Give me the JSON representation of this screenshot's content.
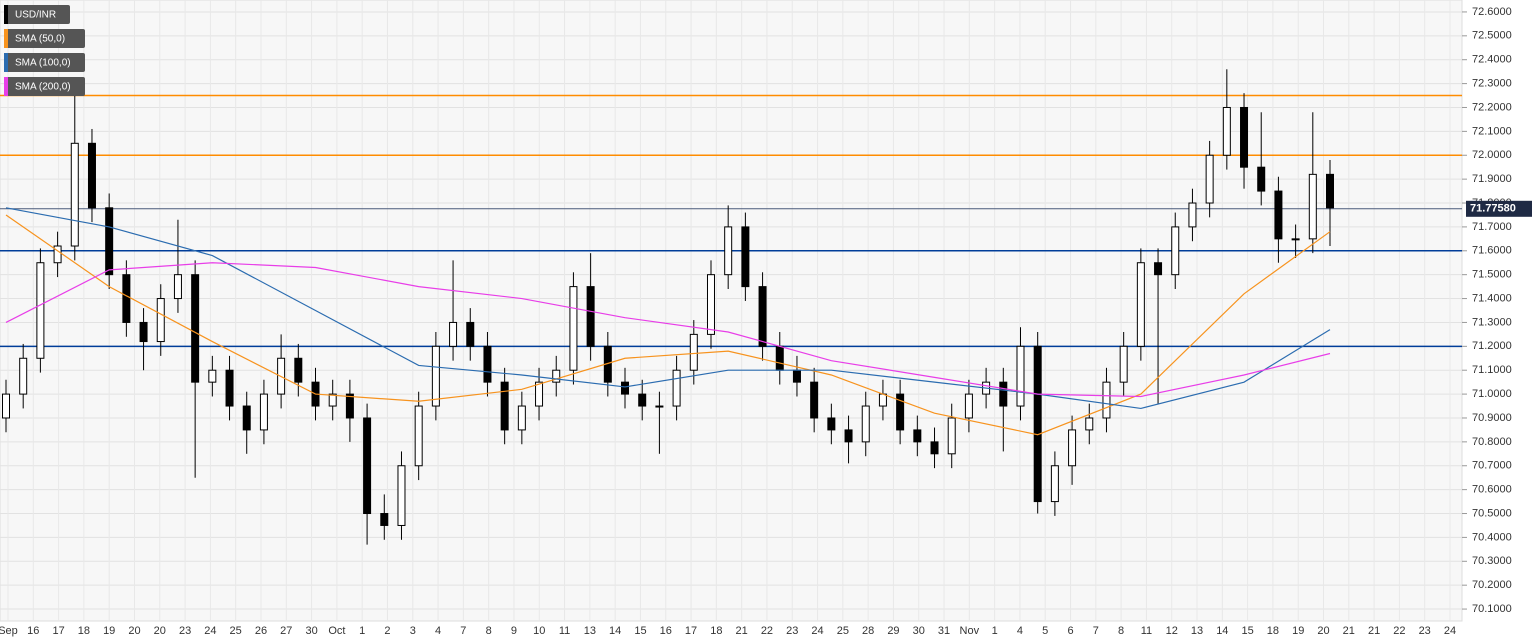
{
  "chart_data": {
    "type": "candlestick",
    "series": [
      {
        "name": "USD/INR",
        "color": "#000000",
        "open": [
          70.9,
          71.0,
          71.15,
          71.55,
          71.62,
          72.05,
          71.78,
          71.5,
          71.3,
          71.22,
          71.4,
          71.5,
          71.05,
          71.1,
          70.95,
          70.85,
          71.0,
          71.15,
          71.05,
          70.95,
          71.0,
          70.9,
          70.5,
          70.45,
          70.7,
          70.95,
          71.2,
          71.3,
          71.2,
          71.05,
          70.85,
          70.95,
          71.05,
          71.1,
          71.45,
          71.2,
          71.05,
          71.0,
          70.95,
          70.95,
          71.1,
          71.25,
          71.5,
          71.7,
          71.45,
          71.2,
          71.1,
          71.05,
          70.9,
          70.85,
          70.8,
          70.95,
          71.0,
          70.85,
          70.8,
          70.75,
          70.9,
          71.0,
          71.05,
          70.95,
          71.2,
          70.55,
          70.7,
          70.85,
          70.9,
          71.05,
          71.2,
          71.55,
          71.5,
          71.7,
          71.8,
          72.0,
          72.2,
          71.95,
          71.85,
          71.65,
          71.65,
          71.92
        ],
        "high": [
          71.06,
          71.21,
          71.61,
          71.68,
          72.3,
          72.11,
          71.84,
          71.56,
          71.36,
          71.46,
          71.73,
          71.56,
          71.16,
          71.16,
          71.01,
          71.06,
          71.25,
          71.21,
          71.11,
          71.06,
          71.06,
          70.96,
          70.58,
          70.76,
          71.01,
          71.26,
          71.56,
          71.36,
          71.26,
          71.11,
          71.01,
          71.11,
          71.16,
          71.51,
          71.59,
          71.26,
          71.11,
          71.06,
          71.01,
          71.16,
          71.31,
          71.56,
          71.79,
          71.76,
          71.51,
          71.26,
          71.16,
          71.11,
          70.96,
          70.91,
          71.01,
          71.06,
          71.06,
          70.91,
          70.86,
          70.96,
          71.06,
          71.11,
          71.11,
          71.28,
          71.26,
          70.76,
          70.91,
          70.96,
          71.11,
          71.26,
          71.61,
          71.61,
          71.76,
          71.86,
          72.06,
          72.36,
          72.26,
          72.18,
          71.91,
          71.71,
          72.18,
          71.98
        ],
        "low": [
          70.84,
          70.94,
          71.09,
          71.49,
          71.56,
          71.72,
          71.44,
          71.24,
          71.1,
          71.16,
          71.34,
          70.65,
          70.99,
          70.89,
          70.75,
          70.79,
          70.94,
          70.99,
          70.89,
          70.89,
          70.8,
          70.37,
          70.39,
          70.39,
          70.64,
          70.89,
          71.14,
          71.14,
          70.99,
          70.79,
          70.79,
          70.89,
          70.99,
          71.04,
          71.14,
          70.99,
          70.94,
          70.89,
          70.75,
          70.89,
          71.04,
          71.19,
          71.44,
          71.39,
          71.14,
          71.04,
          70.99,
          70.84,
          70.79,
          70.71,
          70.74,
          70.89,
          70.79,
          70.74,
          70.69,
          70.69,
          70.84,
          70.94,
          70.76,
          70.89,
          70.5,
          70.49,
          70.62,
          70.79,
          70.84,
          70.99,
          71.14,
          70.96,
          71.44,
          71.64,
          71.74,
          71.94,
          71.86,
          71.79,
          71.55,
          71.57,
          71.59,
          71.62
        ],
        "close": [
          71.0,
          71.15,
          71.55,
          71.62,
          72.05,
          71.78,
          71.5,
          71.3,
          71.22,
          71.4,
          71.5,
          71.05,
          71.1,
          70.95,
          70.85,
          71.0,
          71.15,
          71.05,
          70.95,
          71.0,
          70.9,
          70.5,
          70.45,
          70.7,
          70.95,
          71.2,
          71.3,
          71.2,
          71.05,
          70.85,
          70.95,
          71.05,
          71.1,
          71.45,
          71.2,
          71.05,
          71.0,
          70.95,
          70.95,
          71.1,
          71.25,
          71.5,
          71.7,
          71.45,
          71.2,
          71.1,
          71.05,
          70.9,
          70.85,
          70.8,
          70.95,
          71.0,
          70.85,
          70.8,
          70.75,
          70.9,
          71.0,
          71.05,
          70.95,
          71.2,
          70.55,
          70.7,
          70.85,
          70.9,
          71.05,
          71.2,
          71.55,
          71.5,
          71.7,
          71.8,
          72.0,
          72.2,
          71.95,
          71.85,
          71.65,
          71.65,
          71.92,
          71.78
        ]
      }
    ],
    "sma_x": [
      0,
      6,
      12,
      18,
      24,
      30,
      36,
      42,
      48,
      54,
      60,
      66,
      72,
      77
    ],
    "sma": [
      {
        "name": "SMA (50,0)",
        "color": "#f7931e",
        "values": [
          71.75,
          71.45,
          71.22,
          71.0,
          70.97,
          71.02,
          71.15,
          71.18,
          71.08,
          70.92,
          70.83,
          71.0,
          71.42,
          71.68
        ]
      },
      {
        "name": "SMA (100,0)",
        "color": "#2b6cb0",
        "values": [
          71.78,
          71.7,
          71.58,
          71.35,
          71.12,
          71.08,
          71.03,
          71.1,
          71.1,
          71.05,
          71.0,
          70.94,
          71.05,
          71.27
        ]
      },
      {
        "name": "SMA (200,0)",
        "color": "#e83ee8",
        "values": [
          71.3,
          71.52,
          71.55,
          71.53,
          71.45,
          71.4,
          71.32,
          71.26,
          71.14,
          71.07,
          71.0,
          70.99,
          71.08,
          71.17
        ]
      }
    ],
    "levels": [
      {
        "value": 72.25,
        "color": "#ff8c00"
      },
      {
        "value": 72.0,
        "color": "#ff8c00"
      },
      {
        "value": 71.6,
        "color": "#003d99"
      },
      {
        "value": 71.2,
        "color": "#003d99"
      }
    ],
    "last_price": {
      "value": 71.7758,
      "label": "71.77580"
    },
    "ylim": [
      70.05,
      72.65
    ],
    "yticks": [
      {
        "value": 70.1,
        "label": "70.1000"
      },
      {
        "value": 70.2,
        "label": "70.2000"
      },
      {
        "value": 70.3,
        "label": "70.3000"
      },
      {
        "value": 70.4,
        "label": "70.4000"
      },
      {
        "value": 70.5,
        "label": "70.5000"
      },
      {
        "value": 70.6,
        "label": "70.6000"
      },
      {
        "value": 70.7,
        "label": "70.7000"
      },
      {
        "value": 70.8,
        "label": "70.8000"
      },
      {
        "value": 70.9,
        "label": "70.9000"
      },
      {
        "value": 71.0,
        "label": "71.0000"
      },
      {
        "value": 71.1,
        "label": "71.1000"
      },
      {
        "value": 71.2,
        "label": "71.2000"
      },
      {
        "value": 71.3,
        "label": "71.3000"
      },
      {
        "value": 71.4,
        "label": "71.4000"
      },
      {
        "value": 71.5,
        "label": "71.5000"
      },
      {
        "value": 71.6,
        "label": "71.6000"
      },
      {
        "value": 71.7,
        "label": "71.7000"
      },
      {
        "value": 71.8,
        "label": "71.8000"
      },
      {
        "value": 71.9,
        "label": "71.9000"
      },
      {
        "value": 72.0,
        "label": "72.0000"
      },
      {
        "value": 72.1,
        "label": "72.1000"
      },
      {
        "value": 72.2,
        "label": "72.2000"
      },
      {
        "value": 72.3,
        "label": "72.3000"
      },
      {
        "value": 72.4,
        "label": "72.4000"
      },
      {
        "value": 72.5,
        "label": "72.5000"
      },
      {
        "value": 72.6,
        "label": "72.6000"
      }
    ],
    "x_labels": [
      "Sep",
      "16",
      "17",
      "18",
      "19",
      "20",
      "20",
      "23",
      "24",
      "25",
      "26",
      "27",
      "30",
      "Oct",
      "1",
      "2",
      "3",
      "4",
      "7",
      "8",
      "9",
      "10",
      "11",
      "13",
      "14",
      "15",
      "16",
      "17",
      "18",
      "21",
      "22",
      "23",
      "24",
      "25",
      "28",
      "29",
      "30",
      "31",
      "Nov",
      "1",
      "4",
      "5",
      "6",
      "7",
      "8",
      "11",
      "12",
      "13",
      "14",
      "15",
      "18",
      "19",
      "20",
      "21",
      "21",
      "22",
      "23",
      "24"
    ],
    "grid": true
  }
}
